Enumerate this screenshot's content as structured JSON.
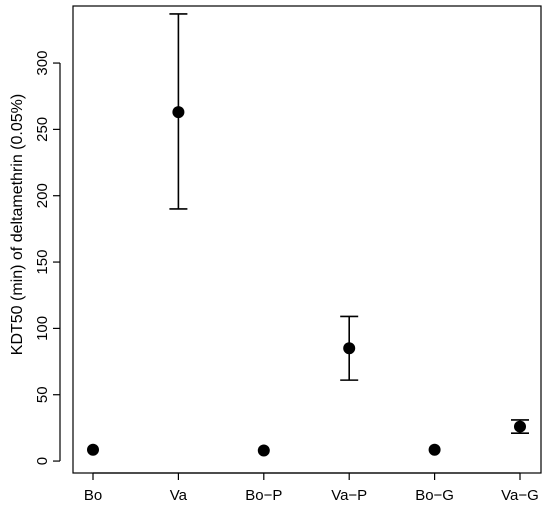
{
  "chart_data": {
    "type": "scatter",
    "title": "",
    "xlabel": "",
    "ylabel": "KDT50 (min) of deltamethrin (0.05%)",
    "categories": [
      "Bo",
      "Va",
      "Bo−P",
      "Va−P",
      "Bo−G",
      "Va−G"
    ],
    "values": [
      8.5,
      263,
      8,
      85,
      8.5,
      26
    ],
    "error_low": [
      null,
      190,
      null,
      61,
      null,
      21
    ],
    "error_high": [
      null,
      337,
      null,
      109,
      null,
      31
    ],
    "ylim": [
      -9,
      343
    ],
    "yticks": [
      0,
      50,
      100,
      150,
      200,
      250,
      300
    ],
    "ytick_labels": [
      "0",
      "50",
      "100",
      "150",
      "200",
      "250",
      "300"
    ],
    "grid": false,
    "legend": "none",
    "marker_color": "#000000"
  }
}
